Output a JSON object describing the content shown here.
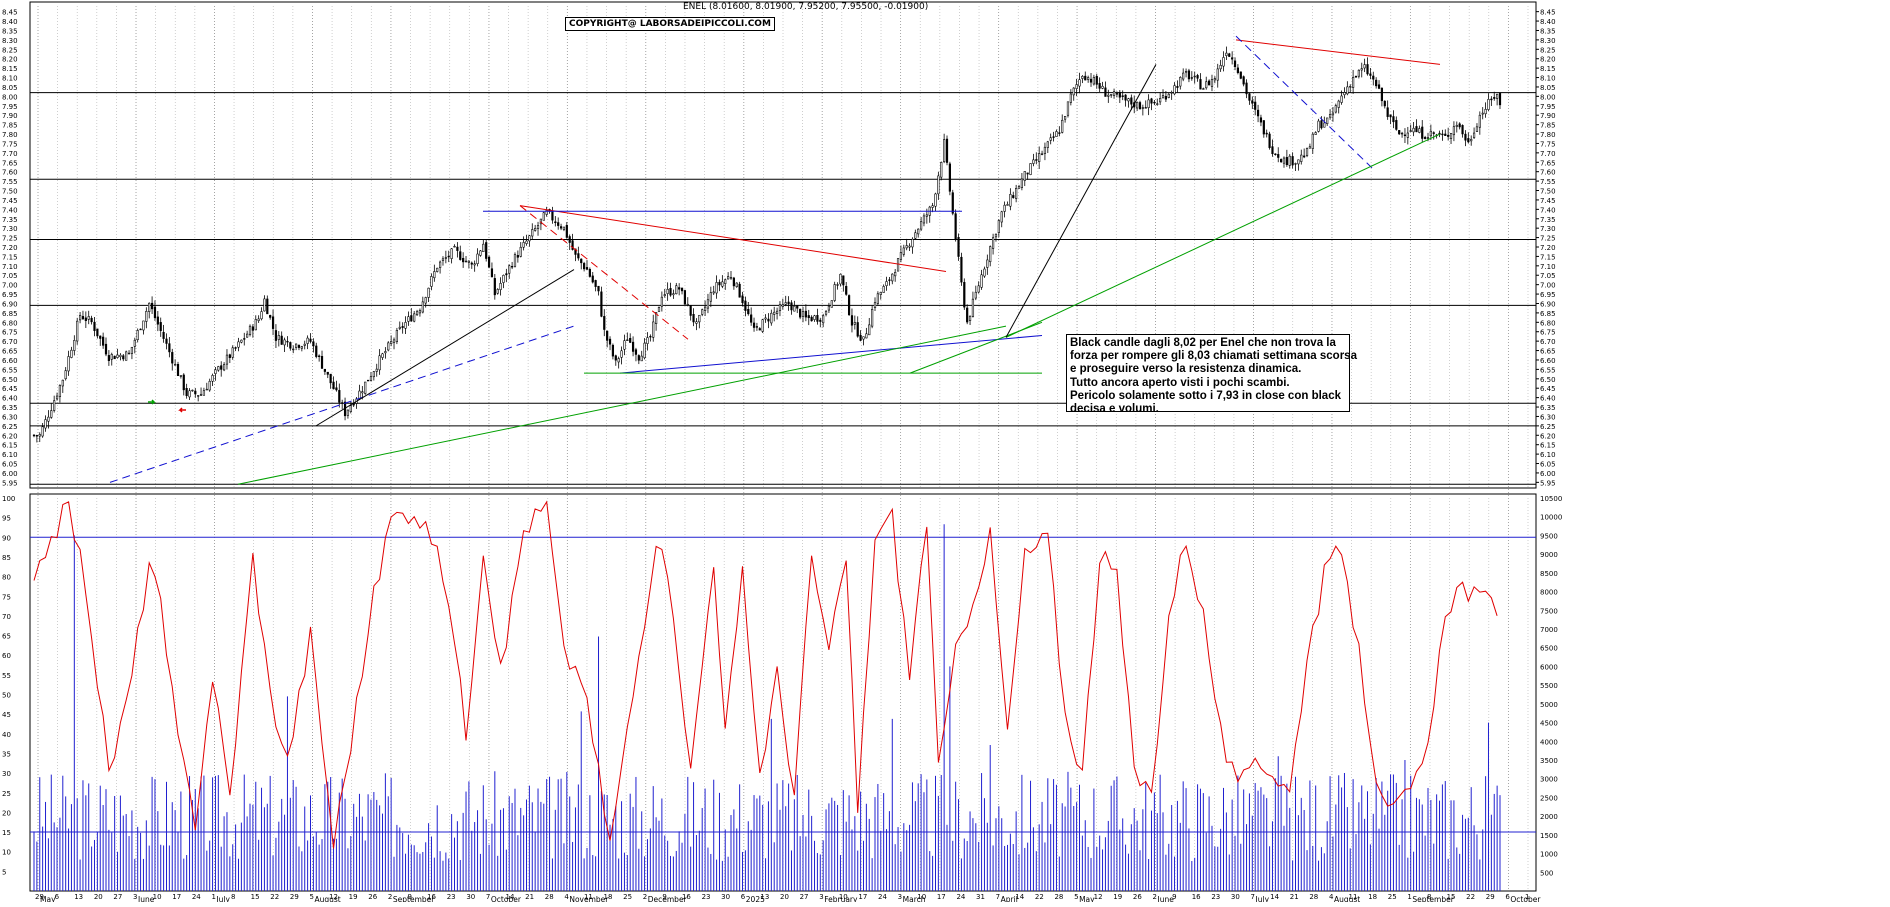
{
  "header": {
    "ticker_line": "ENEL (8.01600, 8.01900, 7.95200, 7.95500, -0.01900)",
    "copyright": "COPYRIGHT@ LABORSADEIPICCOLI.COM"
  },
  "annotation": {
    "lines": [
      "Black candle dagli 8,02 per Enel che non trova la",
      "forza per rompere gli 8,03 chiamati settimana scorsa",
      "e proseguire verso la resistenza dinamica.",
      "Tutto ancora aperto visti i pochi scambi.",
      "Pericolo solamente sotto i 7,93 in close con black",
      "decisa e volumi."
    ]
  },
  "colors": {
    "candle": "#000000",
    "trend_red": "#e00000",
    "trend_blue": "#1010d0",
    "trend_green": "#00a000",
    "trend_black": "#000000",
    "oscillator": "#e00000",
    "volume": "#2020d0",
    "grid": "#bbbbbb"
  },
  "chart_data": [
    {
      "type": "candlestick",
      "series_name": "ENEL",
      "y_range": [
        5.92,
        8.48
      ],
      "y_ticks": [
        "5.95",
        "6.00",
        "6.05",
        "6.10",
        "6.15",
        "6.20",
        "6.25",
        "6.30",
        "6.35",
        "6.40",
        "6.45",
        "6.50",
        "6.55",
        "6.60",
        "6.65",
        "6.70",
        "6.75",
        "6.80",
        "6.85",
        "6.90",
        "6.95",
        "7.00",
        "7.05",
        "7.10",
        "7.15",
        "7.20",
        "7.25",
        "7.30",
        "7.35",
        "7.40",
        "7.45",
        "7.50",
        "7.55",
        "7.60",
        "7.65",
        "7.70",
        "7.75",
        "7.80",
        "7.85",
        "7.90",
        "7.95",
        "8.00",
        "8.05",
        "8.10",
        "8.15",
        "8.20",
        "8.25",
        "8.30",
        "8.35",
        "8.40",
        "8.45"
      ],
      "horizontal_levels": [
        6.25,
        6.37,
        6.89,
        7.24,
        7.56,
        8.02,
        5.94
      ],
      "last_candle": {
        "open": 8.016,
        "high": 8.019,
        "low": 7.952,
        "close": 7.955,
        "change": -0.019
      },
      "close_anchors": [
        [
          0,
          6.2
        ],
        [
          2,
          6.2
        ],
        [
          6,
          6.35
        ],
        [
          10,
          6.5
        ],
        [
          16,
          6.84
        ],
        [
          20,
          6.8
        ],
        [
          26,
          6.62
        ],
        [
          33,
          6.63
        ],
        [
          40,
          6.9
        ],
        [
          46,
          6.68
        ],
        [
          53,
          6.42
        ],
        [
          58,
          6.42
        ],
        [
          64,
          6.55
        ],
        [
          70,
          6.66
        ],
        [
          78,
          6.82
        ],
        [
          80,
          6.92
        ],
        [
          84,
          6.72
        ],
        [
          90,
          6.68
        ],
        [
          96,
          6.7
        ],
        [
          104,
          6.45
        ],
        [
          108,
          6.32
        ],
        [
          114,
          6.45
        ],
        [
          120,
          6.6
        ],
        [
          128,
          6.78
        ],
        [
          134,
          6.88
        ],
        [
          140,
          7.1
        ],
        [
          146,
          7.18
        ],
        [
          152,
          7.1
        ],
        [
          156,
          7.22
        ],
        [
          160,
          6.95
        ],
        [
          166,
          7.12
        ],
        [
          172,
          7.25
        ],
        [
          178,
          7.38
        ],
        [
          184,
          7.3
        ],
        [
          188,
          7.15
        ],
        [
          192,
          7.08
        ],
        [
          196,
          6.95
        ],
        [
          198,
          6.75
        ],
        [
          202,
          6.58
        ],
        [
          206,
          6.72
        ],
        [
          210,
          6.62
        ],
        [
          214,
          6.72
        ],
        [
          218,
          6.95
        ],
        [
          224,
          6.98
        ],
        [
          230,
          6.78
        ],
        [
          236,
          6.98
        ],
        [
          242,
          7.05
        ],
        [
          246,
          6.92
        ],
        [
          250,
          6.75
        ],
        [
          256,
          6.84
        ],
        [
          262,
          6.9
        ],
        [
          268,
          6.82
        ],
        [
          274,
          6.83
        ],
        [
          280,
          7.05
        ],
        [
          284,
          6.8
        ],
        [
          288,
          6.7
        ],
        [
          292,
          6.92
        ],
        [
          296,
          7.0
        ],
        [
          300,
          7.12
        ],
        [
          306,
          7.28
        ],
        [
          312,
          7.42
        ],
        [
          316,
          7.75
        ],
        [
          318,
          7.5
        ],
        [
          322,
          7.0
        ],
        [
          324,
          6.8
        ],
        [
          328,
          7.0
        ],
        [
          332,
          7.2
        ],
        [
          336,
          7.38
        ],
        [
          340,
          7.48
        ],
        [
          344,
          7.58
        ],
        [
          350,
          7.7
        ],
        [
          356,
          7.82
        ],
        [
          360,
          8.0
        ],
        [
          364,
          8.12
        ],
        [
          368,
          8.08
        ],
        [
          372,
          8.02
        ],
        [
          378,
          7.98
        ],
        [
          384,
          7.95
        ],
        [
          390,
          7.97
        ],
        [
          396,
          8.05
        ],
        [
          400,
          8.12
        ],
        [
          406,
          8.05
        ],
        [
          410,
          8.1
        ],
        [
          414,
          8.25
        ],
        [
          418,
          8.15
        ],
        [
          422,
          7.98
        ],
        [
          426,
          7.85
        ],
        [
          430,
          7.72
        ],
        [
          434,
          7.66
        ],
        [
          438,
          7.66
        ],
        [
          442,
          7.7
        ],
        [
          446,
          7.85
        ],
        [
          450,
          7.88
        ],
        [
          454,
          8.0
        ],
        [
          458,
          8.1
        ],
        [
          462,
          8.15
        ],
        [
          466,
          8.06
        ],
        [
          470,
          7.9
        ],
        [
          474,
          7.8
        ],
        [
          478,
          7.83
        ],
        [
          482,
          7.8
        ],
        [
          486,
          7.8
        ],
        [
          490,
          7.78
        ],
        [
          494,
          7.86
        ],
        [
          498,
          7.75
        ],
        [
          502,
          7.9
        ],
        [
          506,
          7.98
        ],
        [
          508,
          8.02
        ],
        [
          509,
          7.955
        ]
      ],
      "trendlines": [
        {
          "color": "red",
          "style": "solid",
          "from": [
            "Oct 21",
            7.42
          ],
          "to": [
            "Mar 10",
            7.07
          ]
        },
        {
          "color": "red",
          "style": "dashed",
          "from": [
            "Oct 21",
            7.42
          ],
          "to": [
            "Dec 2",
            6.71
          ]
        },
        {
          "color": "red",
          "style": "solid",
          "from": [
            "Jun 30",
            8.3
          ],
          "to": [
            "Sep 1",
            8.17
          ]
        },
        {
          "color": "blue",
          "style": "solid",
          "from": [
            "Oct 1",
            7.39
          ],
          "to": [
            "Mar 31",
            7.39
          ]
        },
        {
          "color": "blue",
          "style": "solid",
          "from": [
            "Nov 11",
            6.53
          ],
          "to": [
            "Apr 14",
            6.73
          ]
        },
        {
          "color": "blue",
          "style": "dashed",
          "from": [
            "May 20",
            5.95
          ],
          "to": [
            "Oct 28",
            6.78
          ]
        },
        {
          "color": "blue",
          "style": "dashed",
          "from": [
            "Jun 30",
            8.32
          ],
          "to": [
            "Aug 25",
            7.62
          ]
        },
        {
          "color": "green",
          "style": "solid",
          "from": [
            "Jun 24",
            5.94
          ],
          "to": [
            "Apr 7",
            6.78
          ]
        },
        {
          "color": "green",
          "style": "solid",
          "from": [
            "Mar 3",
            6.53
          ],
          "to": [
            "Apr 14",
            6.8
          ]
        },
        {
          "color": "green",
          "style": "solid",
          "from": [
            "Apr 7",
            6.72
          ],
          "to": [
            "Sep 1",
            7.8
          ]
        },
        {
          "color": "green",
          "style": "solid",
          "from": [
            "Nov 4",
            6.53
          ],
          "to": [
            "Apr 14",
            6.53
          ]
        },
        {
          "color": "black",
          "style": "solid",
          "from": [
            "Aug 5",
            6.25
          ],
          "to": [
            "Oct 28",
            7.08
          ]
        },
        {
          "color": "black",
          "style": "solid",
          "from": [
            "Apr 7",
            6.72
          ],
          "to": [
            "May 26",
            8.17
          ]
        }
      ]
    },
    {
      "type": "line",
      "series_name": "oscillator",
      "y_range": [
        0,
        100
      ],
      "y_ticks": [
        "5",
        "10",
        "15",
        "20",
        "25",
        "30",
        "35",
        "40",
        "45",
        "50",
        "55",
        "60",
        "65",
        "70",
        "75",
        "80",
        "85",
        "90",
        "95",
        "100"
      ],
      "reference_levels": [
        90,
        15
      ],
      "anchors": [
        [
          0,
          82
        ],
        [
          6,
          90
        ],
        [
          12,
          98
        ],
        [
          18,
          78
        ],
        [
          26,
          30
        ],
        [
          33,
          50
        ],
        [
          40,
          84
        ],
        [
          44,
          72
        ],
        [
          50,
          38
        ],
        [
          56,
          18
        ],
        [
          62,
          55
        ],
        [
          68,
          24
        ],
        [
          76,
          85
        ],
        [
          82,
          50
        ],
        [
          88,
          33
        ],
        [
          96,
          65
        ],
        [
          104,
          12
        ],
        [
          110,
          38
        ],
        [
          118,
          75
        ],
        [
          124,
          95
        ],
        [
          132,
          97
        ],
        [
          138,
          90
        ],
        [
          144,
          75
        ],
        [
          150,
          40
        ],
        [
          156,
          88
        ],
        [
          162,
          55
        ],
        [
          170,
          92
        ],
        [
          178,
          98
        ],
        [
          184,
          60
        ],
        [
          190,
          55
        ],
        [
          196,
          30
        ],
        [
          200,
          12
        ],
        [
          208,
          50
        ],
        [
          216,
          90
        ],
        [
          222,
          72
        ],
        [
          228,
          30
        ],
        [
          236,
          85
        ],
        [
          240,
          40
        ],
        [
          246,
          80
        ],
        [
          252,
          30
        ],
        [
          258,
          55
        ],
        [
          264,
          25
        ],
        [
          270,
          85
        ],
        [
          276,
          60
        ],
        [
          282,
          85
        ],
        [
          286,
          20
        ],
        [
          292,
          90
        ],
        [
          298,
          95
        ],
        [
          304,
          55
        ],
        [
          310,
          95
        ],
        [
          314,
          30
        ],
        [
          320,
          60
        ],
        [
          326,
          75
        ],
        [
          332,
          90
        ],
        [
          338,
          40
        ],
        [
          344,
          85
        ],
        [
          352,
          90
        ],
        [
          358,
          45
        ],
        [
          364,
          30
        ],
        [
          370,
          85
        ],
        [
          376,
          80
        ],
        [
          382,
          30
        ],
        [
          388,
          25
        ],
        [
          394,
          70
        ],
        [
          400,
          90
        ],
        [
          406,
          70
        ],
        [
          412,
          40
        ],
        [
          418,
          25
        ],
        [
          424,
          35
        ],
        [
          430,
          30
        ],
        [
          436,
          25
        ],
        [
          442,
          60
        ],
        [
          448,
          80
        ],
        [
          454,
          88
        ],
        [
          460,
          60
        ],
        [
          466,
          30
        ],
        [
          472,
          20
        ],
        [
          478,
          25
        ],
        [
          484,
          35
        ],
        [
          490,
          72
        ],
        [
          496,
          78
        ],
        [
          500,
          75
        ],
        [
          509,
          72
        ]
      ],
      "volume_axis": [
        "500",
        "1000",
        "1500",
        "2000",
        "2500",
        "3000",
        "3500",
        "4000",
        "4500",
        "5000",
        "5500",
        "6000",
        "6500",
        "7000",
        "7500",
        "8000",
        "8500",
        "9000",
        "9500",
        "10000",
        "10500"
      ],
      "volume_spikes": [
        [
          14,
          9500
        ],
        [
          88,
          5200
        ],
        [
          190,
          4800
        ],
        [
          196,
          6800
        ],
        [
          256,
          4600
        ],
        [
          298,
          4600
        ],
        [
          316,
          9800
        ],
        [
          318,
          6000
        ],
        [
          332,
          3900
        ],
        [
          432,
          3600
        ],
        [
          476,
          3500
        ],
        [
          505,
          4500
        ]
      ],
      "volume_ma": 1500
    }
  ],
  "x_axis": {
    "day_ticks": [
      "29",
      "6",
      "13",
      "20",
      "27",
      "3",
      "10",
      "17",
      "24",
      "1",
      "8",
      "15",
      "22",
      "29",
      "5",
      "12",
      "19",
      "26",
      "2",
      "9",
      "16",
      "23",
      "30",
      "7",
      "14",
      "21",
      "28",
      "4",
      "11",
      "18",
      "25",
      "2",
      "9",
      "16",
      "23",
      "30",
      "6",
      "13",
      "20",
      "27",
      "3",
      "10",
      "17",
      "24",
      "3",
      "10",
      "17",
      "24",
      "31",
      "7",
      "14",
      "22",
      "28",
      "5",
      "12",
      "19",
      "26",
      "2",
      "9",
      "16",
      "23",
      "30",
      "7",
      "14",
      "21",
      "28",
      "4",
      "11",
      "18",
      "25",
      "1",
      "8",
      "15",
      "22",
      "29",
      "6",
      "1"
    ],
    "month_labels": [
      "May",
      "June",
      "July",
      "August",
      "September",
      "October",
      "November",
      "December",
      "2025",
      "February",
      "March",
      "April",
      "May",
      "June",
      "July",
      "August",
      "September",
      "October"
    ]
  }
}
